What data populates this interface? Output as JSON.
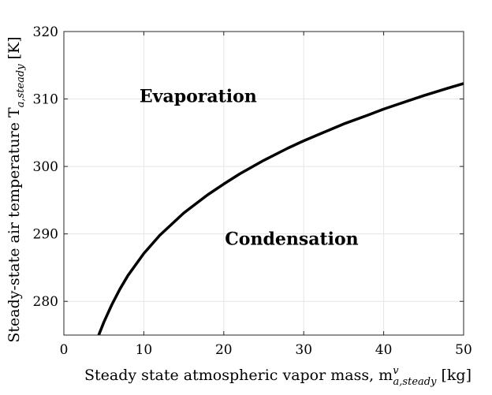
{
  "chart_data": {
    "type": "line",
    "xlabel": "Steady state atmospheric vapor mass, m",
    "xlabel_sup": "v",
    "xlabel_sub": "a,steady",
    "xlabel_unit": " [kg]",
    "ylabel": "Steady-state air temperature T",
    "ylabel_sub": "a,steady",
    "ylabel_unit": " [K]",
    "xlim": [
      0,
      50
    ],
    "ylim": [
      275,
      320
    ],
    "xticks": [
      "0",
      "10",
      "20",
      "30",
      "40",
      "50"
    ],
    "yticks": [
      "280",
      "290",
      "300",
      "310",
      "320"
    ],
    "grid": true,
    "annotations": [
      {
        "text": "Evaporation",
        "x": 16.8,
        "y": 310.5
      },
      {
        "text": "Condensation",
        "x": 28.5,
        "y": 289.3
      }
    ],
    "series": [
      {
        "x": [
          4.36,
          5,
          6,
          7,
          8,
          10,
          12,
          15,
          18,
          20,
          22,
          25,
          28,
          30,
          32,
          35,
          38,
          40,
          42,
          45,
          48,
          50
        ],
        "y": [
          275,
          276.9,
          279.5,
          281.8,
          283.8,
          287.1,
          289.8,
          293.1,
          295.8,
          297.4,
          298.9,
          300.9,
          302.7,
          303.8,
          304.8,
          306.3,
          307.6,
          308.5,
          309.3,
          310.5,
          311.6,
          312.3
        ]
      }
    ],
    "colors": {
      "line": "#000000",
      "grid": "#e5e5e5",
      "axis": "#262626"
    }
  }
}
